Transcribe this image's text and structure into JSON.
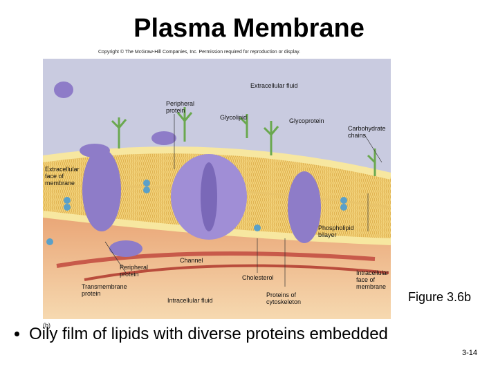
{
  "title": "Plasma Membrane",
  "copyright": "Copyright © The McGraw-Hill Companies, Inc. Permission required for reproduction or display.",
  "figure": {
    "labels": [
      "Extracellular fluid",
      "Peripheral protein",
      "Glycolipid",
      "Glycoprotein",
      "Carbohydrate chains",
      "Extracellular face of membrane",
      "Phospholipid bilayer",
      "Channel",
      "Peripheral protein",
      "Cholesterol",
      "Intracellular face of membrane",
      "Transmembrane protein",
      "Intracellular fluid",
      "Proteins of cytoskeleton"
    ],
    "panel": "(b)",
    "caption": "Figure 3.6b"
  },
  "bullet": "Oily film of lipids with diverse proteins embedded",
  "page_number": "3-14"
}
